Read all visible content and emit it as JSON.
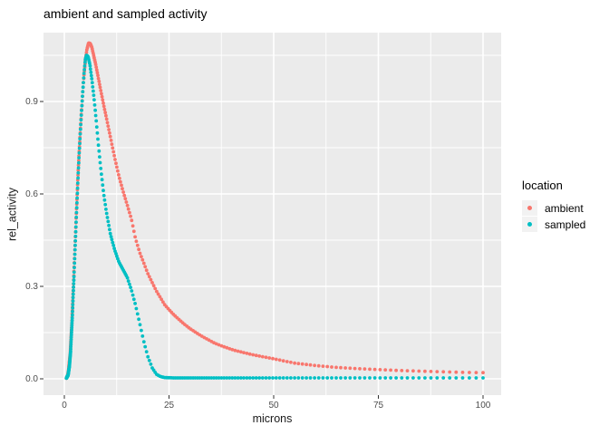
{
  "chart_data": {
    "type": "scatter",
    "title": "ambient and sampled activity",
    "xlabel": "microns",
    "ylabel": "rel_activity",
    "xlim": [
      0,
      100
    ],
    "ylim": [
      0.0,
      1.09
    ],
    "x_ticks": [
      "0",
      "25",
      "50",
      "75",
      "100"
    ],
    "x_tick_values": [
      0,
      25,
      50,
      75,
      100
    ],
    "y_ticks": [
      "0.0",
      "0.3",
      "0.6",
      "0.9"
    ],
    "y_tick_values": [
      0.0,
      0.3,
      0.6,
      0.9
    ],
    "x_minor_gridlines": [
      12.5,
      37.5,
      62.5,
      87.5
    ],
    "y_minor_gridlines": [
      0.15,
      0.45,
      0.75,
      1.05
    ],
    "grid": "on",
    "panel_background": "#EBEBEB",
    "gridline_color": "#FFFFFF",
    "tick_mark_color": "#333333",
    "legend": {
      "title": "location",
      "position": "right",
      "entries": [
        {
          "label": "ambient",
          "color": "#F8766D"
        },
        {
          "label": "sampled",
          "color": "#00BFC4"
        }
      ]
    },
    "series": [
      {
        "name": "ambient",
        "color": "#F8766D",
        "style": "dense-points",
        "points": [
          [
            0.5,
            0.002
          ],
          [
            0.8,
            0.01
          ],
          [
            1.0,
            0.025
          ],
          [
            1.4,
            0.08
          ],
          [
            1.8,
            0.18
          ],
          [
            2.2,
            0.31
          ],
          [
            2.6,
            0.45
          ],
          [
            3.0,
            0.58
          ],
          [
            3.4,
            0.7
          ],
          [
            3.8,
            0.8
          ],
          [
            4.2,
            0.89
          ],
          [
            4.6,
            0.97
          ],
          [
            5.0,
            1.03
          ],
          [
            5.4,
            1.07
          ],
          [
            5.8,
            1.09
          ],
          [
            6.2,
            1.088
          ],
          [
            6.6,
            1.075
          ],
          [
            7.0,
            1.05
          ],
          [
            7.5,
            1.02
          ],
          [
            8.0,
            0.985
          ],
          [
            8.5,
            0.95
          ],
          [
            9.0,
            0.915
          ],
          [
            10,
            0.85
          ],
          [
            11,
            0.785
          ],
          [
            12,
            0.72
          ],
          [
            13,
            0.66
          ],
          [
            14,
            0.61
          ],
          [
            15,
            0.565
          ],
          [
            16,
            0.52
          ],
          [
            17,
            0.455
          ],
          [
            18,
            0.41
          ],
          [
            19,
            0.375
          ],
          [
            20,
            0.34
          ],
          [
            22,
            0.285
          ],
          [
            24,
            0.24
          ],
          [
            26,
            0.21
          ],
          [
            28,
            0.185
          ],
          [
            30,
            0.163
          ],
          [
            33,
            0.137
          ],
          [
            36,
            0.115
          ],
          [
            40,
            0.095
          ],
          [
            45,
            0.078
          ],
          [
            50,
            0.065
          ],
          [
            55,
            0.051
          ],
          [
            60,
            0.043
          ],
          [
            65,
            0.037
          ],
          [
            70,
            0.033
          ],
          [
            75,
            0.03
          ],
          [
            80,
            0.027
          ],
          [
            85,
            0.025
          ],
          [
            90,
            0.023
          ],
          [
            95,
            0.021
          ],
          [
            100,
            0.02
          ]
        ]
      },
      {
        "name": "sampled",
        "color": "#00BFC4",
        "style": "dense-points",
        "points": [
          [
            0.5,
            0.002
          ],
          [
            0.9,
            0.012
          ],
          [
            1.2,
            0.04
          ],
          [
            1.5,
            0.09
          ],
          [
            1.9,
            0.2
          ],
          [
            2.3,
            0.33
          ],
          [
            2.7,
            0.47
          ],
          [
            3.1,
            0.6
          ],
          [
            3.5,
            0.72
          ],
          [
            3.9,
            0.82
          ],
          [
            4.3,
            0.91
          ],
          [
            4.7,
            0.99
          ],
          [
            5.0,
            1.035
          ],
          [
            5.3,
            1.05
          ],
          [
            5.7,
            1.045
          ],
          [
            6.1,
            1.02
          ],
          [
            6.6,
            0.97
          ],
          [
            7.1,
            0.91
          ],
          [
            7.6,
            0.84
          ],
          [
            8.2,
            0.75
          ],
          [
            8.8,
            0.67
          ],
          [
            9.4,
            0.6
          ],
          [
            10,
            0.545
          ],
          [
            11,
            0.47
          ],
          [
            12,
            0.42
          ],
          [
            13,
            0.38
          ],
          [
            14,
            0.355
          ],
          [
            15,
            0.33
          ],
          [
            16,
            0.29
          ],
          [
            17,
            0.24
          ],
          [
            18,
            0.18
          ],
          [
            19,
            0.12
          ],
          [
            20,
            0.07
          ],
          [
            21,
            0.035
          ],
          [
            22,
            0.015
          ],
          [
            23,
            0.007
          ],
          [
            24,
            0.004
          ],
          [
            26,
            0.003
          ],
          [
            30,
            0.003
          ],
          [
            35,
            0.003
          ],
          [
            40,
            0.003
          ],
          [
            45,
            0.003
          ],
          [
            50,
            0.003
          ],
          [
            55,
            0.003
          ],
          [
            60,
            0.003
          ],
          [
            65,
            0.003
          ],
          [
            70,
            0.003
          ],
          [
            75,
            0.003
          ],
          [
            80,
            0.003
          ],
          [
            85,
            0.003
          ],
          [
            90,
            0.003
          ],
          [
            95,
            0.003
          ],
          [
            100,
            0.003
          ]
        ]
      }
    ]
  }
}
